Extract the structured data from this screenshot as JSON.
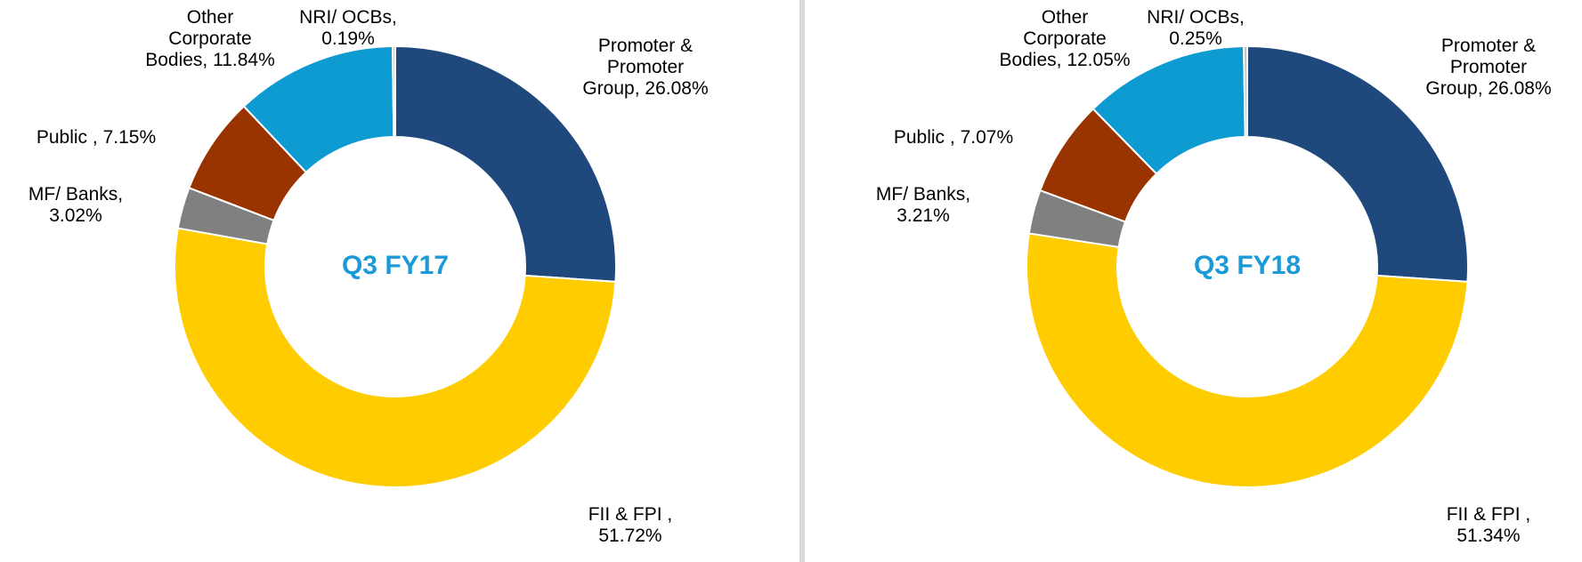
{
  "chart_data": [
    {
      "type": "donut",
      "title": "Q3 FY17",
      "categories": [
        "Promoter & Promoter Group,",
        "FII & FPI ,",
        "MF/ Banks,",
        "Public ,",
        "Other Corporate Bodies,",
        "NRI/ OCBs,"
      ],
      "values": [
        26.08,
        51.72,
        3.02,
        7.15,
        11.84,
        0.19
      ],
      "value_labels": [
        "26.08%",
        "51.72%",
        "3.02%",
        "7.15%",
        "11.84%",
        "0.19%"
      ],
      "colors": [
        "#1f497d",
        "#ffcc00",
        "#808080",
        "#993300",
        "#0e9bd2",
        "#bfbfbf"
      ]
    },
    {
      "type": "donut",
      "title": "Q3 FY18",
      "categories": [
        "Promoter & Promoter Group,",
        "FII & FPI ,",
        "MF/ Banks,",
        "Public ,",
        "Other Corporate Bodies,",
        "NRI/ OCBs,"
      ],
      "values": [
        26.08,
        51.34,
        3.21,
        7.07,
        12.05,
        0.25
      ],
      "value_labels": [
        "26.08%",
        "51.34%",
        "3.21%",
        "7.07%",
        "12.05%",
        "0.25%"
      ],
      "colors": [
        "#1f497d",
        "#ffcc00",
        "#808080",
        "#993300",
        "#0e9bd2",
        "#bfbfbf"
      ]
    }
  ]
}
